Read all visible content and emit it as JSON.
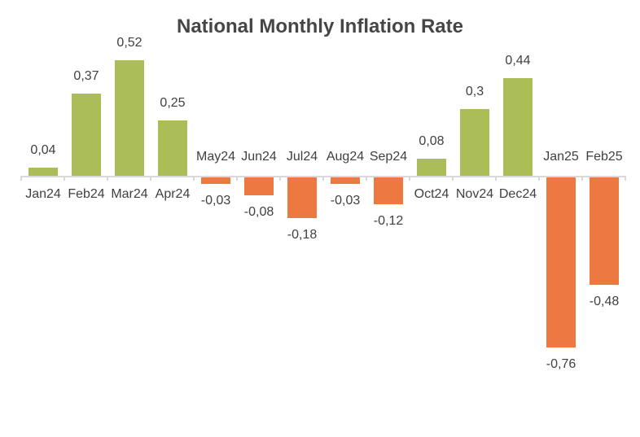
{
  "chart_data": {
    "type": "bar",
    "title": "National Monthly Inflation Rate",
    "categories": [
      "Jan24",
      "Feb24",
      "Mar24",
      "Apr24",
      "May24",
      "Jun24",
      "Jul24",
      "Aug24",
      "Sep24",
      "Oct24",
      "Nov24",
      "Dec24",
      "Jan25",
      "Feb25"
    ],
    "values": [
      0.04,
      0.37,
      0.52,
      0.25,
      -0.03,
      -0.08,
      -0.18,
      -0.03,
      -0.12,
      0.08,
      0.3,
      0.44,
      -0.76,
      -0.48
    ],
    "value_labels": [
      "0,04",
      "0,37",
      "0,52",
      "0,25",
      "-0,03",
      "-0,08",
      "-0,18",
      "-0,03",
      "-0,12",
      "0,08",
      "0,3",
      "0,44",
      "-0,76",
      "-0,48"
    ],
    "xlabel": "",
    "ylabel": "",
    "ylim": [
      -0.9,
      0.6
    ],
    "grid": false,
    "legend": false,
    "label_position": "outside-end",
    "category_label_position": "next-to-axis-opposite-bar",
    "colors": {
      "positive_bar": "#ABBD56",
      "negative_bar": "#EC7A40",
      "axis_line": "#D9D9D9",
      "tick": "#D9D9D9",
      "label_text": "#404040",
      "title_text": "#464646",
      "background": "#FFFFFF"
    }
  }
}
